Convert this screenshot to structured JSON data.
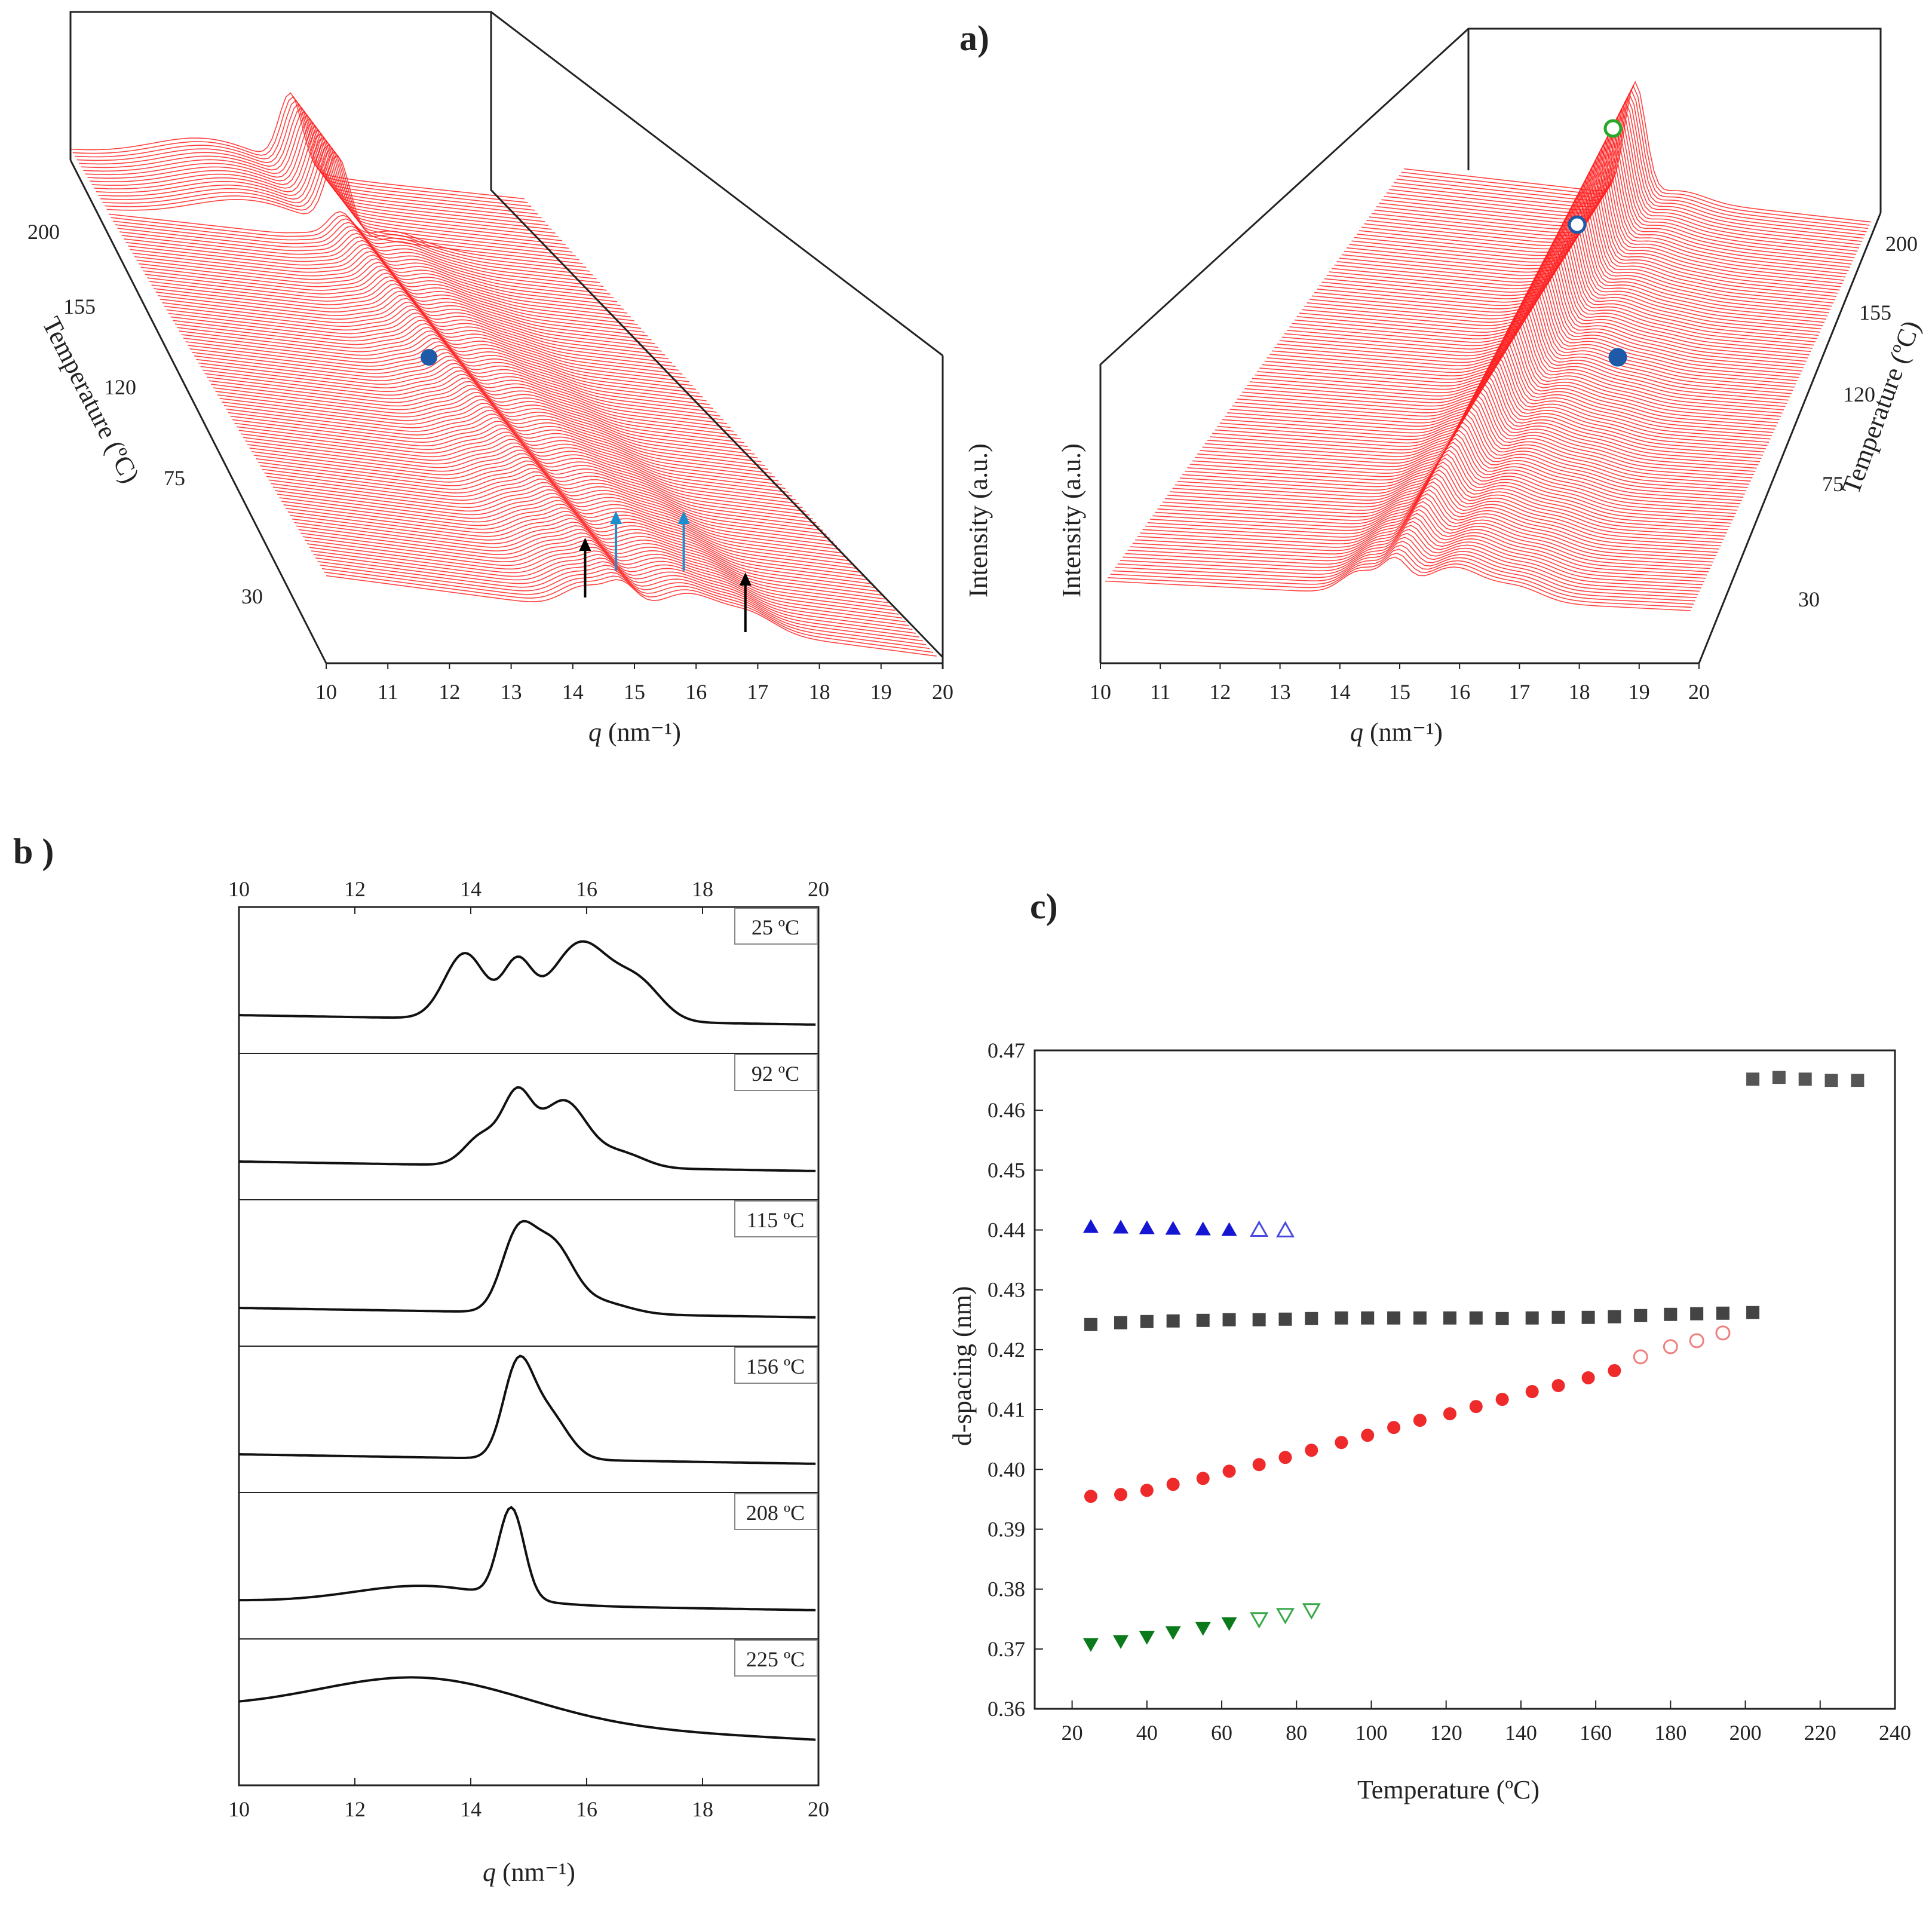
{
  "figure": {
    "panel_labels": {
      "a": "a)",
      "b": "b )",
      "c": "c)"
    },
    "colors": {
      "surface": "#ff2020",
      "trace": "#111111",
      "black_sq": "#444444",
      "blue_tri": "#1515d4",
      "red_circ": "#ee2a2a",
      "green_tri": "#0a7a1a",
      "marker_blue": "#1f5aa8",
      "marker_green": "#28a828",
      "arrow_black": "#000000",
      "arrow_blue": "#1a8fd0"
    }
  },
  "chart_data": [
    {
      "id": "a-left",
      "type": "waterfall-3d",
      "title": "a)",
      "xlabel_var": "q",
      "xlabel_unit": " (nm⁻¹)",
      "ylabel": "Intensity (a.u.)",
      "zlabel": "Temperature (ºC)",
      "x_ticks": [
        "10",
        "11",
        "12",
        "13",
        "14",
        "15",
        "16",
        "17",
        "18",
        "19",
        "20"
      ],
      "z_ticks": [
        "200",
        "155",
        "120",
        "75",
        "30"
      ],
      "peaks_q_25C": [
        14.2,
        14.8,
        15.9,
        16.9
      ],
      "arrows": [
        {
          "q": 14.2,
          "color": "black"
        },
        {
          "q": 14.7,
          "color": "blue"
        },
        {
          "q": 15.8,
          "color": "blue"
        },
        {
          "q": 16.8,
          "color": "black"
        }
      ],
      "markers": [
        {
          "q": 11.6,
          "T": 140,
          "style": "filled-blue"
        }
      ]
    },
    {
      "id": "a-right",
      "type": "waterfall-3d",
      "xlabel_var": "q",
      "xlabel_unit": " (nm⁻¹)",
      "ylabel": "Intensity (a.u.)",
      "zlabel": "Temperature (ºC)",
      "x_ticks": [
        "10",
        "11",
        "12",
        "13",
        "14",
        "15",
        "16",
        "17",
        "18",
        "19",
        "20"
      ],
      "z_ticks": [
        "200",
        "155",
        "120",
        "75",
        "30"
      ],
      "markers": [
        {
          "q": 18.6,
          "T": 210,
          "style": "open-green"
        },
        {
          "q": 18.0,
          "T": 190,
          "style": "open-blue"
        },
        {
          "q": 18.7,
          "T": 140,
          "style": "filled-blue"
        }
      ]
    },
    {
      "id": "b",
      "type": "line",
      "title": "b )",
      "xlabel_var": "q",
      "xlabel_unit": " (nm⁻¹)",
      "x_ticks": [
        "10",
        "12",
        "14",
        "16",
        "18",
        "20"
      ],
      "xlim": [
        10,
        20
      ],
      "series": [
        {
          "name": "25 ºC",
          "peaks": [
            [
              13.9,
              0.55,
              0.35
            ],
            [
              14.8,
              0.45,
              0.25
            ],
            [
              15.9,
              0.65,
              0.5
            ],
            [
              16.9,
              0.3,
              0.4
            ]
          ]
        },
        {
          "name": "92 ºC",
          "peaks": [
            [
              14.2,
              0.25,
              0.3
            ],
            [
              14.8,
              0.55,
              0.25
            ],
            [
              15.6,
              0.55,
              0.4
            ],
            [
              16.6,
              0.12,
              0.4
            ]
          ]
        },
        {
          "name": "115 ºC",
          "peaks": [
            [
              14.8,
              0.6,
              0.28
            ],
            [
              15.4,
              0.55,
              0.35
            ],
            [
              16.2,
              0.1,
              0.5
            ]
          ]
        },
        {
          "name": "156 ºC",
          "peaks": [
            [
              14.8,
              0.7,
              0.25
            ],
            [
              15.3,
              0.4,
              0.35
            ]
          ]
        },
        {
          "name": "208 ºC",
          "peaks": [
            [
              14.7,
              0.75,
              0.22
            ],
            [
              13.2,
              0.15,
              1.2
            ]
          ]
        },
        {
          "name": "225 ºC",
          "peaks": [
            [
              13.2,
              0.35,
              1.8
            ]
          ]
        }
      ]
    },
    {
      "id": "c",
      "type": "scatter",
      "title": "c)",
      "xlabel": "Temperature (ºC)",
      "ylabel": "d-spacing (nm)",
      "xlim": [
        10,
        240
      ],
      "ylim": [
        0.36,
        0.47
      ],
      "x_ticks": [
        "20",
        "40",
        "60",
        "80",
        "100",
        "120",
        "140",
        "160",
        "180",
        "200",
        "220",
        "240"
      ],
      "y_ticks": [
        "0.36",
        "0.37",
        "0.38",
        "0.39",
        "0.40",
        "0.41",
        "0.42",
        "0.43",
        "0.44",
        "0.45",
        "0.46",
        "0.47"
      ],
      "series": [
        {
          "name": "squares-high",
          "marker": "square",
          "filled": true,
          "color": "#555555",
          "x": [
            202,
            209,
            216,
            223,
            230
          ],
          "y": [
            0.4652,
            0.4655,
            0.4652,
            0.465,
            0.465
          ]
        },
        {
          "name": "squares",
          "marker": "square",
          "filled": true,
          "color": "#444444",
          "x": [
            25,
            33,
            40,
            47,
            55,
            62,
            70,
            77,
            84,
            92,
            99,
            106,
            113,
            121,
            128,
            135,
            143,
            150,
            158,
            165,
            172,
            180,
            187,
            194,
            202
          ],
          "y": [
            0.4242,
            0.4245,
            0.4247,
            0.4248,
            0.4249,
            0.425,
            0.425,
            0.4251,
            0.4252,
            0.4253,
            0.4253,
            0.4253,
            0.4253,
            0.4253,
            0.4253,
            0.4252,
            0.4253,
            0.4254,
            0.4254,
            0.4255,
            0.4257,
            0.4259,
            0.426,
            0.4261,
            0.4262
          ]
        },
        {
          "name": "up-triangles",
          "marker": "triangle-up",
          "filled": true,
          "color": "#1515d4",
          "x": [
            25,
            33,
            40,
            47,
            55,
            62
          ],
          "y": [
            0.4405,
            0.4404,
            0.4403,
            0.4402,
            0.4401,
            0.44
          ]
        },
        {
          "name": "up-triangles-open",
          "marker": "triangle-up",
          "filled": false,
          "color": "#1515d4",
          "x": [
            70,
            77
          ],
          "y": [
            0.44,
            0.4399
          ]
        },
        {
          "name": "circles",
          "marker": "circle",
          "filled": true,
          "color": "#ee2a2a",
          "x": [
            25,
            33,
            40,
            47,
            55,
            62,
            70,
            77,
            84,
            92,
            99,
            106,
            113,
            121,
            128,
            135,
            143,
            150,
            158,
            165
          ],
          "y": [
            0.3955,
            0.3958,
            0.3965,
            0.3975,
            0.3985,
            0.3997,
            0.4008,
            0.402,
            0.4032,
            0.4045,
            0.4057,
            0.407,
            0.4082,
            0.4093,
            0.4105,
            0.4117,
            0.413,
            0.414,
            0.4153,
            0.4165
          ]
        },
        {
          "name": "circles-open",
          "marker": "circle",
          "filled": false,
          "color": "#ee2a2a",
          "x": [
            172,
            180,
            187,
            194
          ],
          "y": [
            0.4188,
            0.4205,
            0.4215,
            0.4228
          ]
        },
        {
          "name": "down-triangles",
          "marker": "triangle-down",
          "filled": true,
          "color": "#0a7a1a",
          "x": [
            25,
            33,
            40,
            47,
            55,
            62
          ],
          "y": [
            0.3708,
            0.3713,
            0.372,
            0.3728,
            0.3735,
            0.3743
          ]
        },
        {
          "name": "down-triangles-open",
          "marker": "triangle-down",
          "filled": false,
          "color": "#0a7a1a",
          "x": [
            70,
            77,
            84
          ],
          "y": [
            0.375,
            0.3757,
            0.3765
          ]
        }
      ]
    }
  ]
}
